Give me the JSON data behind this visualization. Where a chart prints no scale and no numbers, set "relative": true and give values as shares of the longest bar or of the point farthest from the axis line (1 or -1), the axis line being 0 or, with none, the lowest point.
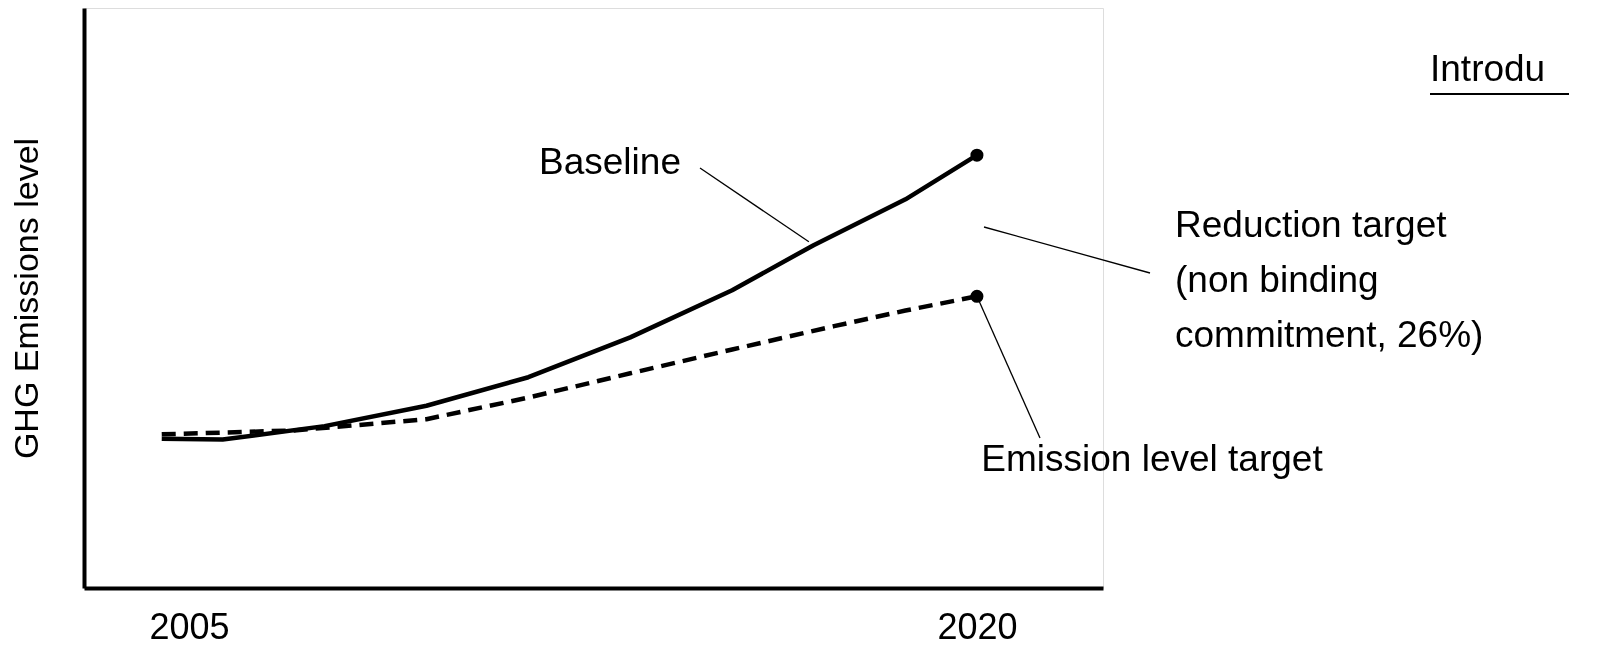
{
  "chart_data": {
    "type": "line",
    "relative": true,
    "ylabel": "GHG Emissions level",
    "xlim": [
      2003,
      2022.4
    ],
    "xticks": [
      2005,
      2020
    ],
    "grid": false,
    "series": [
      {
        "color": "#000000",
        "line_style": "solid",
        "x": [
          2004.48,
          2005.64,
          2007.58,
          2009.52,
          2011.46,
          2013.4,
          2015.34,
          2016.89,
          2018.64,
          2020
        ],
        "values": [
          0.345,
          0.343,
          0.374,
          0.421,
          0.487,
          0.579,
          0.688,
          0.792,
          0.898,
          1.0
        ]
      },
      {
        "color": "#000000",
        "line_style": "dashed",
        "x": [
          2004.48,
          2007,
          2009.52,
          2011.46,
          2013.4,
          2015.34,
          2017.28,
          2018.64,
          2020
        ],
        "values": [
          0.355,
          0.364,
          0.39,
          0.44,
          0.496,
          0.551,
          0.605,
          0.641,
          0.674
        ]
      },
      {
        "type": "scatter",
        "color": "#000000",
        "marker": "circle",
        "x": [
          2020,
          2020
        ],
        "values": [
          1.0,
          0.674
        ]
      }
    ],
    "annotations": [
      "Introdu",
      {
        "text": "Baseline",
        "x": 2016.8,
        "y": 0.8
      },
      "Reduction target\n(non binding\ncommitment, 26%)",
      {
        "text": "Emission level target",
        "x": 2020,
        "y": 0.674
      }
    ]
  }
}
